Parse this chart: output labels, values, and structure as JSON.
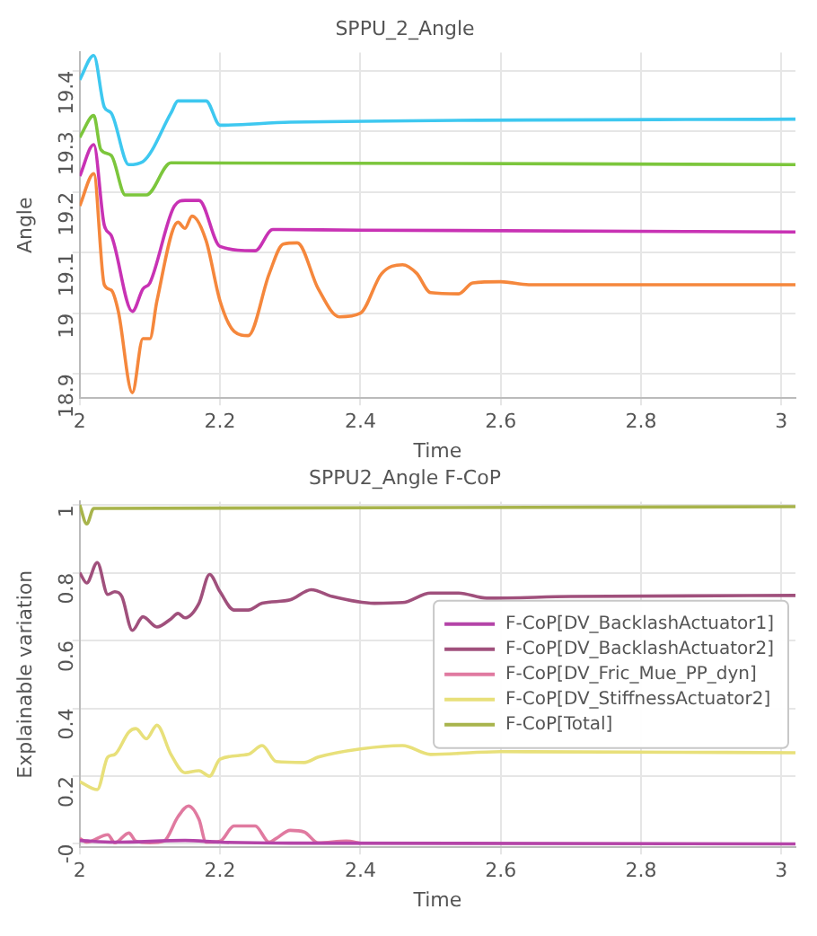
{
  "chart_data": [
    {
      "type": "line",
      "title": "SPPU_2_Angle",
      "xlabel": "Time",
      "ylabel": "Angle",
      "xlim": [
        2,
        3.02
      ],
      "ylim": [
        18.86,
        19.43
      ],
      "xticks": [
        2,
        2.2,
        2.4,
        2.6,
        2.8,
        3
      ],
      "yticks": [
        18.9,
        19,
        19.1,
        19.2,
        19.3,
        19.4
      ],
      "grid": true,
      "legend": false,
      "series": [
        {
          "color": "#3ec8f0",
          "x": [
            2,
            2.02,
            2.035,
            2.045,
            2.07,
            2.09,
            2.13,
            2.14,
            2.18,
            2.2,
            2.3,
            3.02
          ],
          "values": [
            19.385,
            19.425,
            19.34,
            19.33,
            19.245,
            19.25,
            19.33,
            19.35,
            19.35,
            19.31,
            19.315,
            19.32
          ]
        },
        {
          "color": "#7cc63c",
          "x": [
            2,
            2.02,
            2.03,
            2.045,
            2.065,
            2.095,
            2.13,
            3.02
          ],
          "values": [
            19.29,
            19.326,
            19.27,
            19.26,
            19.195,
            19.195,
            19.248,
            19.245
          ]
        },
        {
          "color": "#c832b4",
          "x": [
            2,
            2.02,
            2.035,
            2.045,
            2.075,
            2.09,
            2.1,
            2.135,
            2.15,
            2.17,
            2.2,
            2.25,
            2.275,
            2.4,
            3.02
          ],
          "values": [
            19.226,
            19.278,
            19.145,
            19.128,
            19.003,
            19.04,
            19.05,
            19.177,
            19.186,
            19.186,
            19.11,
            19.103,
            19.138,
            19.137,
            19.134
          ]
        },
        {
          "color": "#f5873c",
          "x": [
            2,
            2.02,
            2.035,
            2.045,
            2.055,
            2.075,
            2.09,
            2.1,
            2.11,
            2.14,
            2.15,
            2.16,
            2.18,
            2.2,
            2.22,
            2.24,
            2.27,
            2.29,
            2.31,
            2.34,
            2.37,
            2.4,
            2.43,
            2.46,
            2.48,
            2.5,
            2.54,
            2.56,
            2.6,
            2.64,
            3.02
          ],
          "values": [
            19.177,
            19.23,
            19.047,
            19.038,
            19.003,
            18.869,
            18.958,
            18.958,
            19.02,
            19.15,
            19.14,
            19.16,
            19.12,
            19.02,
            18.97,
            18.963,
            19.065,
            19.114,
            19.116,
            19.04,
            18.994,
            19,
            19.065,
            19.08,
            19.066,
            19.034,
            19.032,
            19.05,
            19.052,
            19.047,
            19.047
          ]
        }
      ]
    },
    {
      "type": "line",
      "title": "SPPU2_Angle F-CoP",
      "xlabel": "Time",
      "ylabel": "Explainable variation",
      "xlim": [
        2,
        3.02
      ],
      "ylim": [
        -0.01,
        1.01
      ],
      "xticks": [
        2,
        2.2,
        2.4,
        2.6,
        2.8,
        3
      ],
      "yticks": [
        {
          "value": 0,
          "label": "-0"
        },
        0.2,
        0.4,
        0.6,
        0.8,
        1
      ],
      "grid": true,
      "legend": "right",
      "series": [
        {
          "name": "F-CoP[DV_BacklashActuator1]",
          "color": "#b444a8",
          "x": [
            2,
            2.05,
            2.15,
            2.2,
            2.3,
            3.02
          ],
          "values": [
            0.01,
            0.005,
            0.01,
            0.005,
            0.002,
            0
          ]
        },
        {
          "name": "F-CoP[DV_BacklashActuator2]",
          "color": "#a0507c",
          "x": [
            2,
            2.01,
            2.025,
            2.04,
            2.05,
            2.06,
            2.075,
            2.09,
            2.11,
            2.13,
            2.14,
            2.15,
            2.17,
            2.185,
            2.2,
            2.22,
            2.24,
            2.26,
            2.3,
            2.33,
            2.36,
            2.42,
            2.46,
            2.5,
            2.54,
            2.58,
            2.7,
            3.02
          ],
          "values": [
            0.8,
            0.77,
            0.83,
            0.736,
            0.744,
            0.73,
            0.63,
            0.67,
            0.64,
            0.664,
            0.68,
            0.667,
            0.71,
            0.795,
            0.744,
            0.69,
            0.69,
            0.71,
            0.72,
            0.75,
            0.73,
            0.71,
            0.712,
            0.74,
            0.74,
            0.725,
            0.73,
            0.733
          ]
        },
        {
          "name": "F-CoP[DV_Fric_Mue_PP_dyn]",
          "color": "#e07aa0",
          "x": [
            2,
            2.01,
            2.04,
            2.05,
            2.07,
            2.08,
            2.1,
            2.12,
            2.14,
            2.155,
            2.17,
            2.18,
            2.2,
            2.22,
            2.25,
            2.27,
            2.28,
            2.3,
            2.32,
            2.34,
            2.38,
            2.4
          ],
          "values": [
            0.016,
            0.005,
            0.027,
            0.003,
            0.032,
            0.008,
            0.003,
            0.008,
            0.08,
            0.112,
            0.072,
            0.005,
            0.008,
            0.053,
            0.053,
            0.005,
            0.016,
            0.04,
            0.035,
            0.003,
            0.008,
            0.002
          ]
        },
        {
          "name": "F-CoP[DV_StiffnessActuator2]",
          "color": "#e8e07a",
          "x": [
            2,
            2.025,
            2.04,
            2.05,
            2.07,
            2.08,
            2.095,
            2.11,
            2.13,
            2.15,
            2.17,
            2.185,
            2.2,
            2.24,
            2.26,
            2.28,
            2.32,
            2.34,
            2.4,
            2.46,
            2.5,
            2.6,
            3.02
          ],
          "values": [
            0.184,
            0.16,
            0.256,
            0.264,
            0.33,
            0.34,
            0.31,
            0.35,
            0.264,
            0.21,
            0.216,
            0.2,
            0.25,
            0.264,
            0.29,
            0.243,
            0.24,
            0.256,
            0.28,
            0.29,
            0.264,
            0.272,
            0.269
          ]
        },
        {
          "name": "F-CoP[Total]",
          "color": "#a8b44c",
          "x": [
            2,
            2.01,
            2.02,
            3.02
          ],
          "values": [
            1,
            0.944,
            0.99,
            0.995
          ]
        }
      ]
    }
  ]
}
